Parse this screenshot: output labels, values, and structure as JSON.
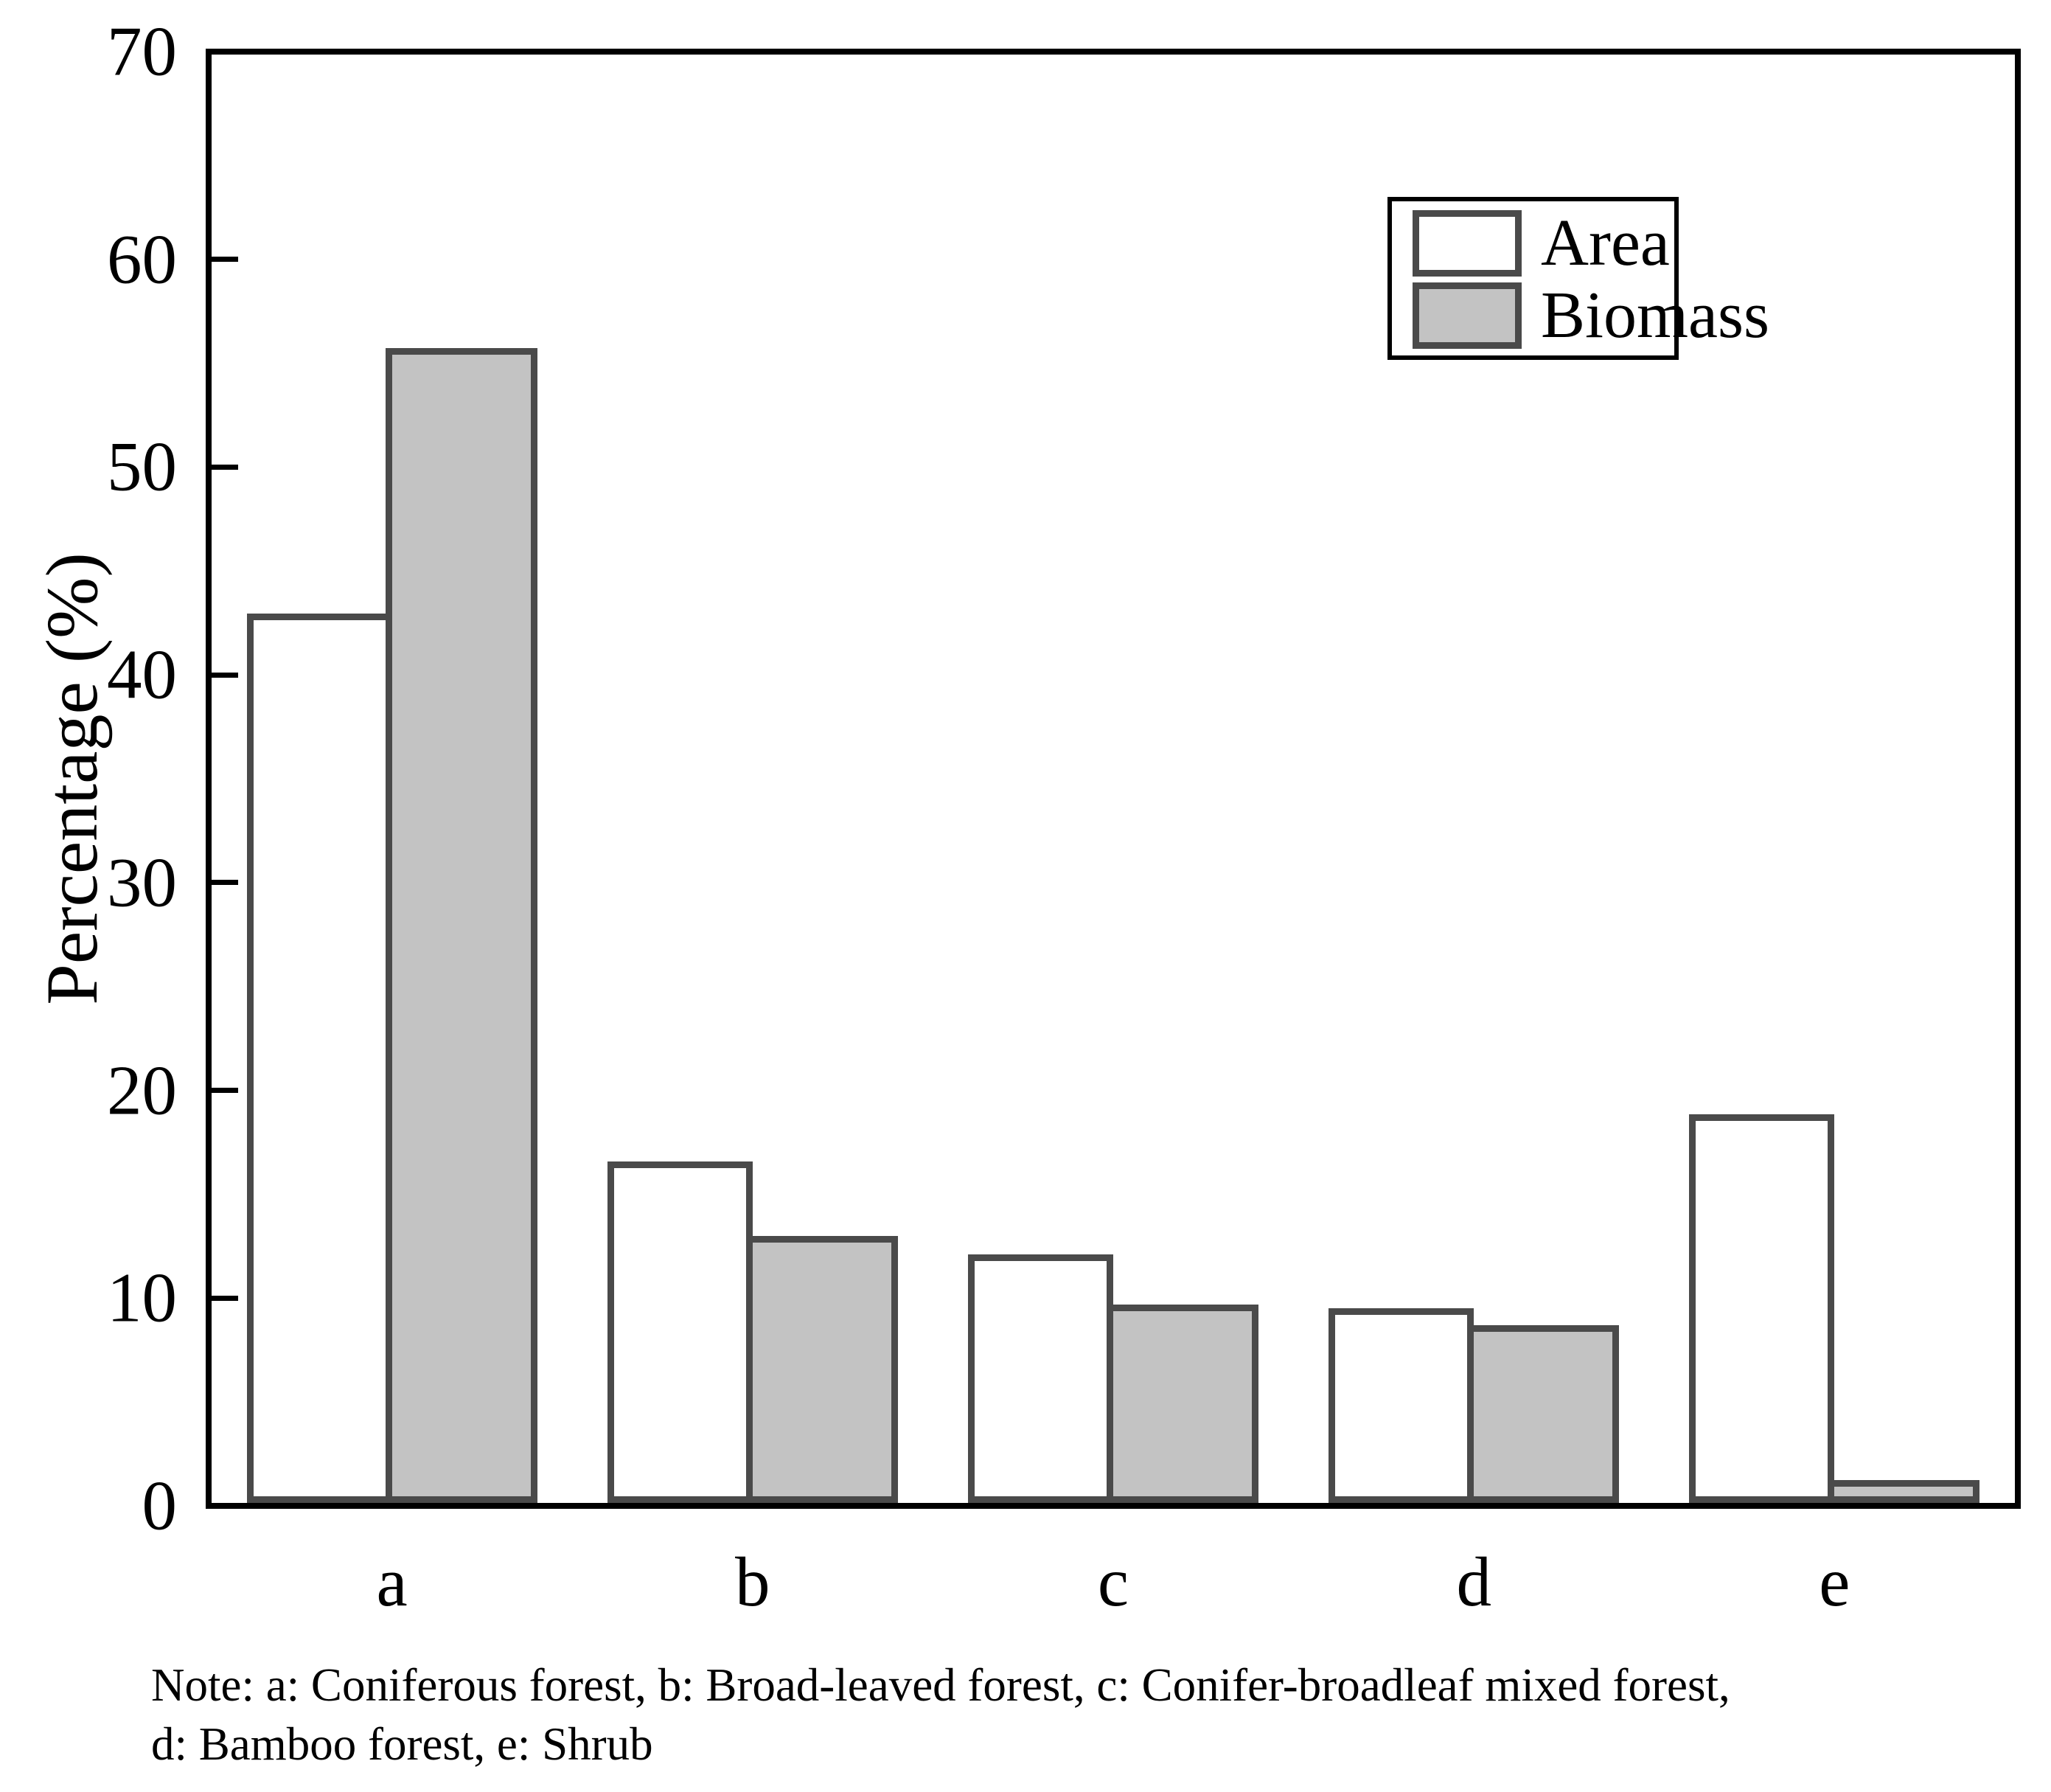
{
  "chart_data": {
    "type": "bar",
    "title": "",
    "xlabel": "",
    "ylabel": "Percentage (%)",
    "categories": [
      "a",
      "b",
      "c",
      "d",
      "e"
    ],
    "series": [
      {
        "name": "Area",
        "fill": "#ffffff",
        "values": [
          43.0,
          16.5,
          12.0,
          9.4,
          18.8
        ]
      },
      {
        "name": "Biomass",
        "fill": "#c3c3c3",
        "values": [
          55.8,
          12.9,
          9.6,
          8.6,
          1.1
        ]
      }
    ],
    "ylim": [
      0,
      70
    ],
    "yticks": [
      0,
      10,
      20,
      30,
      40,
      50,
      60,
      70
    ],
    "grid": false,
    "legend_position": "upper right",
    "bar_edge_color": "#4a4a4a",
    "axis_color": "#000000"
  },
  "note": {
    "line1": "Note: a: Coniferous forest, b: Broad-leaved forest, c: Conifer-broadleaf mixed forest,",
    "line2": "d: Bamboo forest, e: Shrub"
  }
}
